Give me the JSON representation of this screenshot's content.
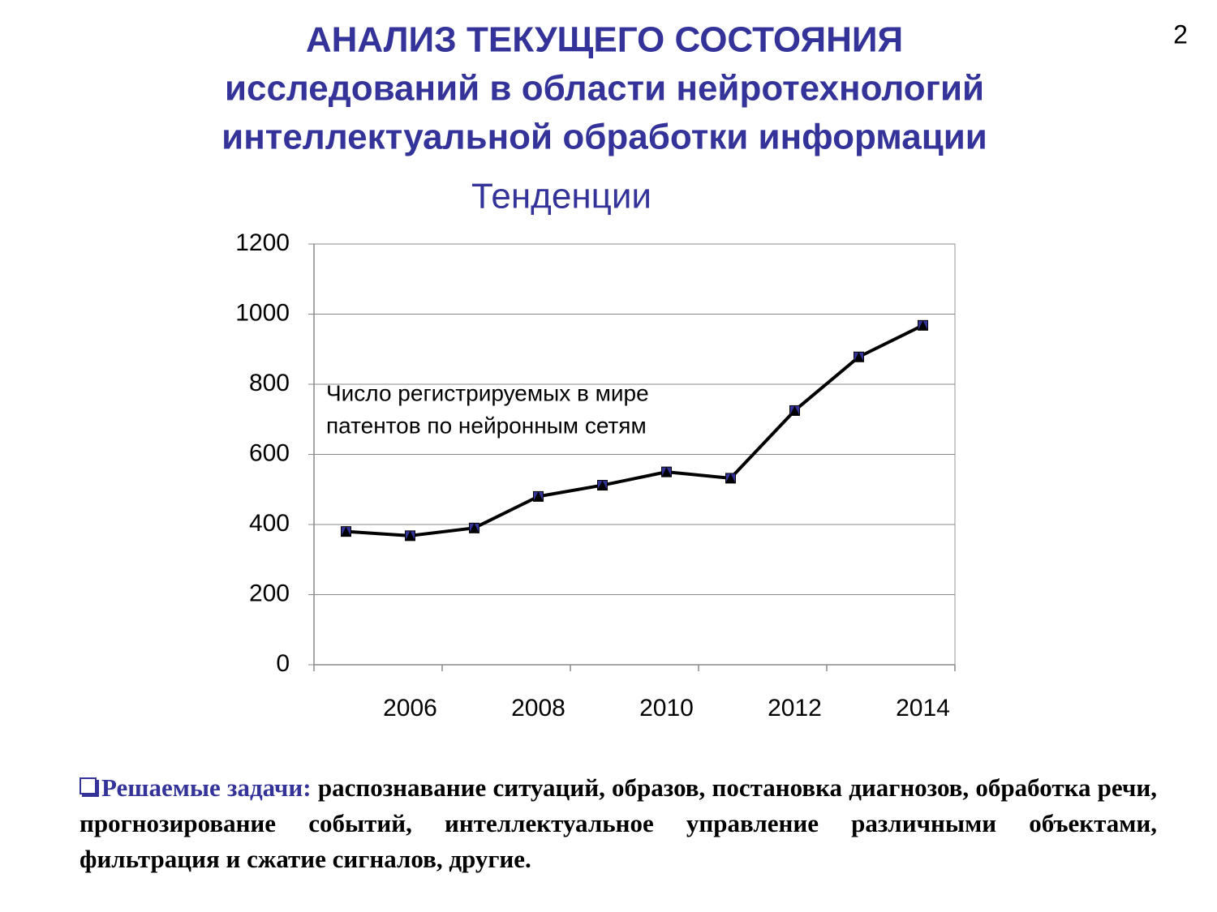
{
  "header": {
    "title_lines": [
      "АНАЛИЗ ТЕКУЩЕГО СОСТОЯНИЯ",
      "исследований в области нейротехнологий",
      "интеллектуальной обработки информации"
    ],
    "page_number": "2"
  },
  "chart_data": {
    "type": "line",
    "title": "Тенденции",
    "annotation": [
      "Число регистрируемых в мире",
      "патентов по нейронным сетям"
    ],
    "categories": [
      null,
      "2006",
      null,
      "2008",
      null,
      "2010",
      null,
      "2012",
      null,
      "2014"
    ],
    "values": [
      380,
      368,
      390,
      480,
      512,
      550,
      532,
      725,
      878,
      968
    ],
    "color": "#000000",
    "marker_color": "#333399",
    "ylim": [
      0,
      1200
    ],
    "yticks": [
      0,
      200,
      400,
      600,
      800,
      1000,
      1200
    ],
    "grid": true
  },
  "tasks": {
    "label": "Решаемые задачи:",
    "text": "распознавание ситуаций, образов, постановка диагнозов, обработка речи, прогнозирование событий, интеллектуальное управление различными объектами, фильтрация и сжатие сигналов, другие."
  }
}
